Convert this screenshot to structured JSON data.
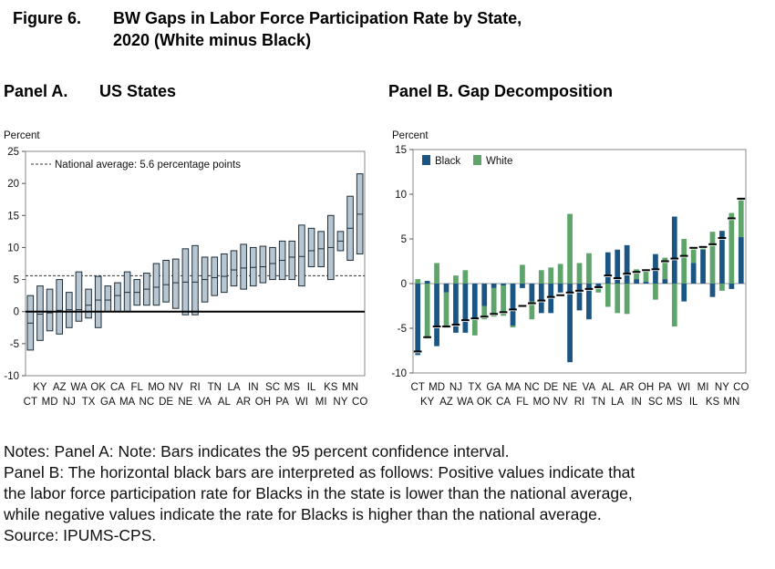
{
  "figure": {
    "label": "Figure 6.",
    "title_line1": "BW Gaps in Labor Force Participation Rate by State,",
    "title_line2": "2020 (White minus Black)"
  },
  "panelA": {
    "label": "Panel A.",
    "title": "US States"
  },
  "panelB": {
    "title": "Panel B. Gap Decomposition"
  },
  "chart_data": [
    {
      "type": "bar",
      "description": "Confidence interval bars with point estimates",
      "ylabel": "Percent",
      "ylim": [
        -10,
        25
      ],
      "yticks": [
        -10,
        -5,
        0,
        5,
        10,
        15,
        20,
        25
      ],
      "reference_line": {
        "value": 5.6,
        "label": "National average: 5.6 percentage points"
      },
      "categories": [
        "CT",
        "KY",
        "MD",
        "AZ",
        "NJ",
        "WA",
        "TX",
        "OK",
        "GA",
        "CA",
        "MA",
        "FL",
        "NC",
        "MO",
        "DE",
        "NV",
        "NE",
        "RI",
        "VA",
        "TN",
        "AL",
        "LA",
        "AR",
        "IN",
        "OH",
        "SC",
        "PA",
        "MS",
        "WI",
        "IL",
        "MI",
        "KS",
        "NY",
        "MN",
        "CO"
      ],
      "lower": [
        -6.0,
        -4.5,
        -3.0,
        -3.5,
        -2.5,
        -1.5,
        -1.0,
        -2.5,
        0.0,
        0.0,
        0.0,
        1.0,
        1.0,
        1.0,
        1.5,
        0.5,
        -0.5,
        -0.5,
        1.5,
        2.5,
        3.0,
        4.0,
        3.5,
        4.0,
        4.5,
        5.0,
        5.0,
        5.0,
        4.0,
        7.0,
        7.0,
        5.0,
        9.5,
        8.0,
        9.0
      ],
      "estimate": [
        -1.8,
        -0.4,
        -0.2,
        0.2,
        0.3,
        0.3,
        1.0,
        1.8,
        1.8,
        2.5,
        3.0,
        3.0,
        3.5,
        3.8,
        4.2,
        4.5,
        4.6,
        4.6,
        5.0,
        5.3,
        5.5,
        6.5,
        6.8,
        6.9,
        7.0,
        7.5,
        8.0,
        8.5,
        8.6,
        9.5,
        9.8,
        10.0,
        11.0,
        13.0,
        15.2
      ],
      "upper": [
        2.5,
        4.0,
        3.5,
        5.0,
        3.0,
        6.2,
        3.5,
        5.5,
        4.0,
        4.5,
        6.2,
        5.0,
        6.0,
        7.5,
        8.0,
        8.2,
        9.8,
        10.3,
        8.5,
        8.5,
        9.0,
        9.5,
        10.5,
        10.0,
        10.2,
        10.0,
        11.0,
        11.0,
        13.5,
        13.0,
        12.5,
        15.0,
        12.5,
        18.0,
        21.5
      ],
      "colors": {
        "bar_fill": "#b7c6d0",
        "bar_stroke": "#1f2f3a",
        "reference": "#333333",
        "zero_line": "#000000"
      }
    },
    {
      "type": "bar",
      "description": "Stacked decomposition bars (Black, White) with black horizontal marks",
      "ylabel": "Percent",
      "ylim": [
        -10,
        15
      ],
      "yticks": [
        -10,
        -5,
        0,
        5,
        10,
        15
      ],
      "legend": {
        "position": "top-left",
        "entries": [
          "Black",
          "White"
        ]
      },
      "categories": [
        "CT",
        "KY",
        "MD",
        "AZ",
        "NJ",
        "WA",
        "TX",
        "OK",
        "GA",
        "CA",
        "MA",
        "FL",
        "NC",
        "MO",
        "DE",
        "NV",
        "NE",
        "RI",
        "VA",
        "TN",
        "AL",
        "LA",
        "AR",
        "IN",
        "OH",
        "SC",
        "PA",
        "MS",
        "WI",
        "IL",
        "MI",
        "KS",
        "NY",
        "MN",
        "CO"
      ],
      "series": [
        {
          "name": "Black",
          "color": "#1b5584",
          "values": [
            -8.0,
            0.3,
            -7.0,
            -1.0,
            -5.5,
            -5.5,
            -4.0,
            -2.5,
            -0.5,
            -0.2,
            -4.7,
            -0.5,
            -2.0,
            -3.3,
            -3.3,
            -1.0,
            -8.8,
            -3.0,
            -4.0,
            -0.5,
            3.5,
            3.8,
            4.3,
            0.5,
            0.2,
            3.3,
            0.5,
            7.5,
            -2.0,
            2.3,
            3.8,
            -1.5,
            5.9,
            -0.6,
            5.2
          ]
        },
        {
          "name": "White",
          "color": "#5ea46b",
          "values": [
            0.5,
            -6.2,
            2.3,
            -4.0,
            0.9,
            1.5,
            -1.8,
            -1.5,
            -3.2,
            -3.4,
            -0.2,
            2.1,
            -2.0,
            1.5,
            1.8,
            2.2,
            7.8,
            2.3,
            3.4,
            -0.5,
            -2.6,
            -3.3,
            -3.4,
            1.1,
            1.3,
            -1.8,
            2.4,
            -4.8,
            5.0,
            1.6,
            0.3,
            5.8,
            -0.8,
            7.9,
            4.2
          ]
        }
      ],
      "marks": [
        -7.6,
        -6.0,
        -4.8,
        -4.8,
        -4.6,
        -4.1,
        -3.9,
        -3.7,
        -3.4,
        -3.2,
        -2.9,
        -2.5,
        -2.2,
        -1.9,
        -1.5,
        -1.3,
        -1.0,
        -0.8,
        -0.6,
        -0.4,
        0.9,
        0.6,
        1.1,
        1.3,
        1.5,
        1.6,
        2.5,
        2.8,
        3.1,
        4.0,
        4.1,
        4.4,
        5.1,
        7.3,
        9.5
      ]
    }
  ],
  "notes": {
    "line1": "Notes: Panel A: Note: Bars indicates the 95 percent confidence interval.",
    "line2": "Panel B: The horizontal black bars are interpreted as follows: Positive values indicate that",
    "line3": "the labor force participation rate for Blacks in the state is lower than the national average,",
    "line4": "while negative values indicate the rate for Blacks is higher than the national average.",
    "line5": "Source: IPUMS-CPS."
  }
}
